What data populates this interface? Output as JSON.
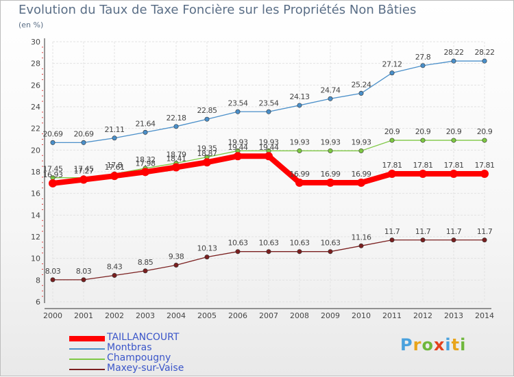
{
  "title": "Evolution du Taux de Taxe Foncière sur les Propriétés Non Bâties",
  "subtitle": "(en %)",
  "brand": {
    "letters": [
      "P",
      "r",
      "o",
      "x",
      "i",
      "t",
      "i"
    ],
    "colors": [
      "#4aa1dd",
      "#e8a51c",
      "#6fb73c",
      "#e3411c",
      "#4aa1dd",
      "#e8a51c",
      "#6fb73c"
    ]
  },
  "chart_data": {
    "type": "line",
    "title": "Evolution du Taux de Taxe Foncière sur les Propriétés Non Bâties",
    "ylabel": "(en %)",
    "x": [
      "2000",
      "2001",
      "2002",
      "2003",
      "2004",
      "2005",
      "2006",
      "2007",
      "2008",
      "2009",
      "2010",
      "2011",
      "2012",
      "2013",
      "2014"
    ],
    "ylim": [
      6,
      30
    ],
    "yticks": [
      "6",
      "8",
      "10",
      "12",
      "14",
      "16",
      "18",
      "20",
      "22",
      "24",
      "26",
      "28",
      "30"
    ],
    "grid": true,
    "legend_position": "bottom-left",
    "series": [
      {
        "name": "TAILLANCOURT",
        "color": "#ff0000",
        "values": [
          16.93,
          17.27,
          17.61,
          17.98,
          18.41,
          18.87,
          19.44,
          19.44,
          16.99,
          16.99,
          16.99,
          17.81,
          17.81,
          17.81,
          17.81
        ],
        "labels": [
          "16.93",
          "17.27",
          "17.61",
          "17.98",
          "18.41",
          "18.87",
          "19.44",
          "19.44",
          "16.99",
          "16.99",
          "16.99",
          "17.81",
          "17.81",
          "17.81",
          "17.81"
        ]
      },
      {
        "name": "Montbras",
        "color": "#4a8fc9",
        "values": [
          20.69,
          20.69,
          21.11,
          21.64,
          22.18,
          22.85,
          23.54,
          23.54,
          24.13,
          24.74,
          25.24,
          27.12,
          27.8,
          28.22,
          28.22
        ],
        "labels": [
          "20.69",
          "20.69",
          "21.11",
          "21.64",
          "22.18",
          "22.85",
          "23.54",
          "23.54",
          "24.13",
          "24.74",
          "25.24",
          "27.12",
          "27.8",
          "28.22",
          "28.22"
        ]
      },
      {
        "name": "Champougny",
        "color": "#7ec843",
        "values": [
          17.45,
          17.45,
          17.8,
          18.32,
          18.79,
          19.35,
          19.93,
          19.93,
          19.93,
          19.93,
          19.93,
          20.9,
          20.9,
          20.9,
          20.9
        ],
        "labels": [
          "17.45",
          "17.45",
          "17.8",
          "18.32",
          "18.79",
          "19.35",
          "19.93",
          "19.93",
          "19.93",
          "19.93",
          "19.93",
          "20.9",
          "20.9",
          "20.9",
          "20.9"
        ]
      },
      {
        "name": "Maxey-sur-Vaise",
        "color": "#7a1f1f",
        "values": [
          8.03,
          8.03,
          8.43,
          8.85,
          9.38,
          10.13,
          10.63,
          10.63,
          10.63,
          10.63,
          11.16,
          11.7,
          11.7,
          11.7,
          11.7
        ],
        "labels": [
          "8.03",
          "8.03",
          "8.43",
          "8.85",
          "9.38",
          "10.13",
          "10.63",
          "10.63",
          "10.63",
          "10.63",
          "11.16",
          "11.7",
          "11.7",
          "11.7",
          "11.7"
        ]
      }
    ]
  }
}
